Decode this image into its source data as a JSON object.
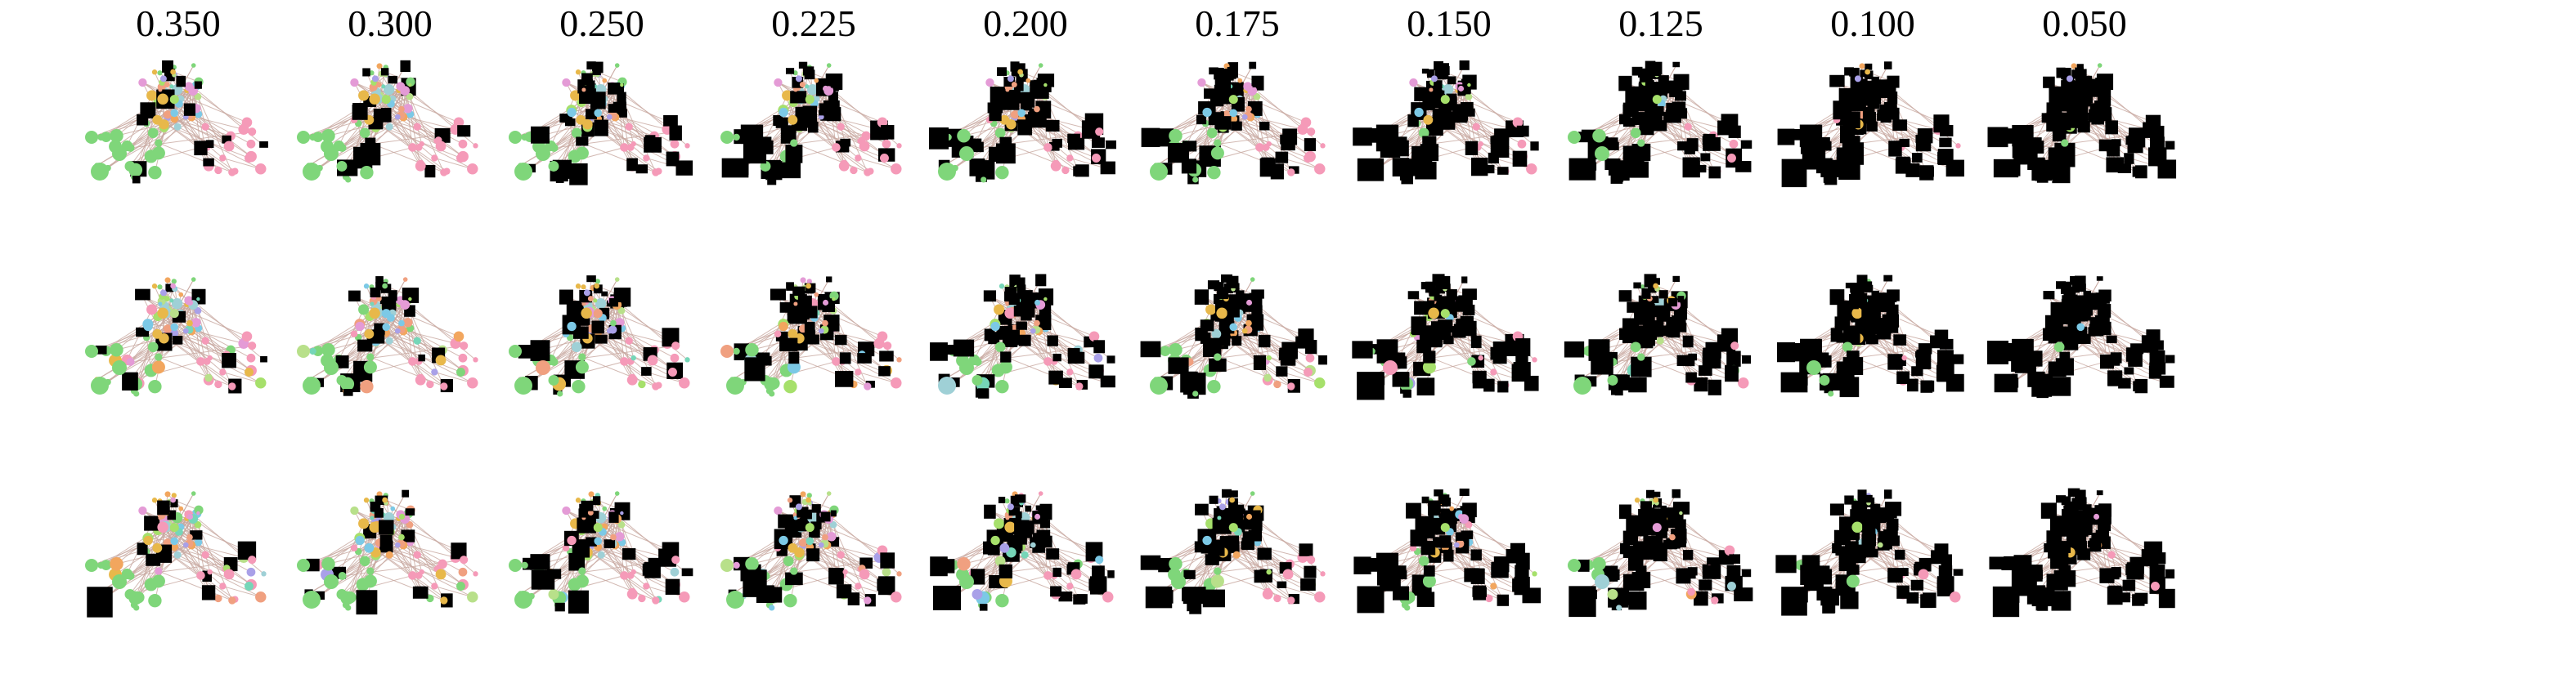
{
  "columns": [
    "0.350",
    "0.300",
    "0.250",
    "0.225",
    "0.200",
    "0.175",
    "0.150",
    "0.125",
    "0.100",
    "0.050"
  ],
  "rows": 3,
  "colors": {
    "edge": "#c8a8a0",
    "removed": "#000000",
    "palette": [
      "#7fd67a",
      "#a6e06b",
      "#f2a65e",
      "#f59ab8",
      "#e8b84a",
      "#7cc9e6",
      "#76d6b8",
      "#e49bd6",
      "#a9a0e8",
      "#9fd0d6",
      "#f0a080",
      "#b8e08a"
    ]
  }
}
